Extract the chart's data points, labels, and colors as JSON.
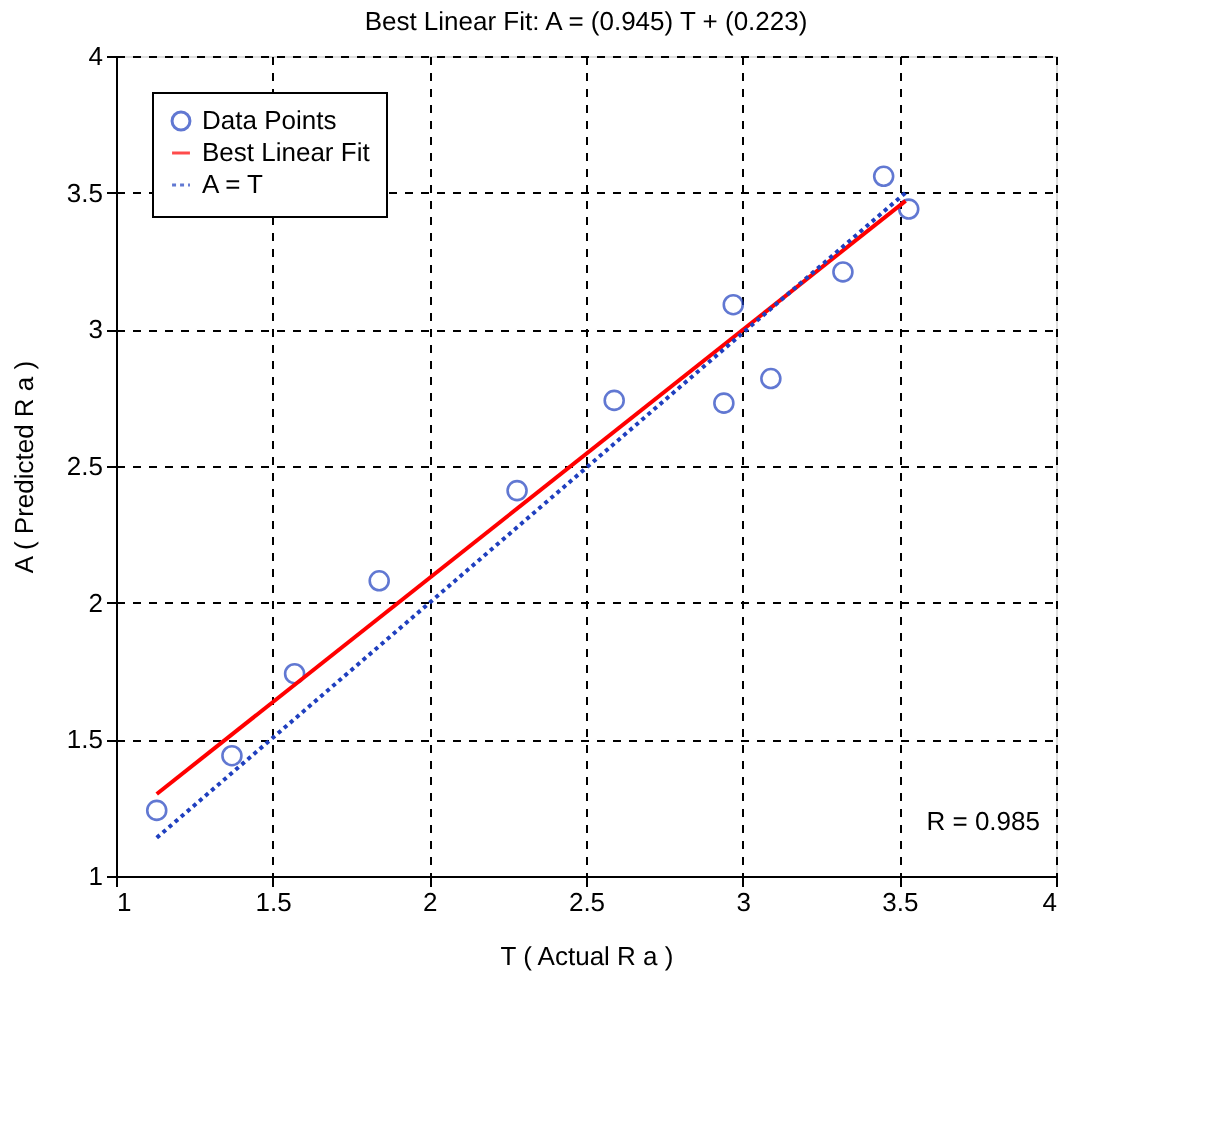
{
  "chart_data": {
    "type": "scatter",
    "title": "Best Linear Fit:  A = (0.945) T + (0.223)",
    "xlabel": "T ( Actual R a )",
    "ylabel": "A ( Predicted R a )",
    "xlim": [
      1,
      4
    ],
    "xticks": [
      1,
      1.5,
      2,
      2.5,
      3,
      3.5,
      4
    ],
    "ylim": [
      1,
      4
    ],
    "yticks": [
      1,
      1.5,
      2,
      2.5,
      3,
      3.5,
      4
    ],
    "grid": true,
    "legend": "top left",
    "series": [
      {
        "name": "Data Points",
        "type": "scatter",
        "marker": "circle",
        "color": "#1f3fbf",
        "x": [
          1.13,
          1.37,
          1.57,
          1.84,
          2.28,
          2.59,
          2.94,
          2.97,
          3.09,
          3.32,
          3.45,
          3.53
        ],
        "values": [
          1.24,
          1.44,
          1.74,
          2.08,
          2.41,
          2.74,
          2.73,
          3.09,
          2.82,
          3.21,
          3.56,
          3.44
        ]
      },
      {
        "name": "Best Linear Fit",
        "type": "line",
        "line_style": "solid",
        "color": "#ff0000",
        "x": [
          1.13,
          3.52
        ],
        "values": [
          1.3,
          3.47
        ]
      },
      {
        "name": "A = T",
        "type": "line",
        "line_style": "dotted",
        "color": "#1f3fbf",
        "x": [
          1.13,
          3.52
        ],
        "values": [
          1.14,
          3.5
        ]
      }
    ],
    "annotations": [
      "R = 0.985"
    ]
  }
}
